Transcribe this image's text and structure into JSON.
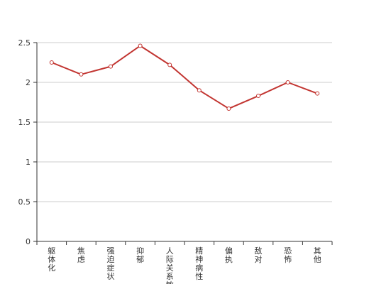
{
  "chart_data": {
    "type": "line",
    "categories": [
      "躯体化",
      "焦虑",
      "强迫症状",
      "抑郁",
      "人际关系敏感",
      "精神病性",
      "偏执",
      "敌对",
      "恐怖",
      "其他"
    ],
    "series": [
      {
        "values": [
          2.25,
          2.1,
          2.2,
          2.46,
          2.22,
          1.9,
          1.67,
          1.83,
          2.0,
          1.86
        ]
      }
    ],
    "ylim": [
      0,
      2.5
    ],
    "yticks": [
      "0",
      "0.5",
      "1",
      "1.5",
      "2",
      "2.5"
    ],
    "grid": true,
    "colors": {
      "line": "#c23531",
      "grid": "#cccccc",
      "axis": "#333333"
    }
  }
}
